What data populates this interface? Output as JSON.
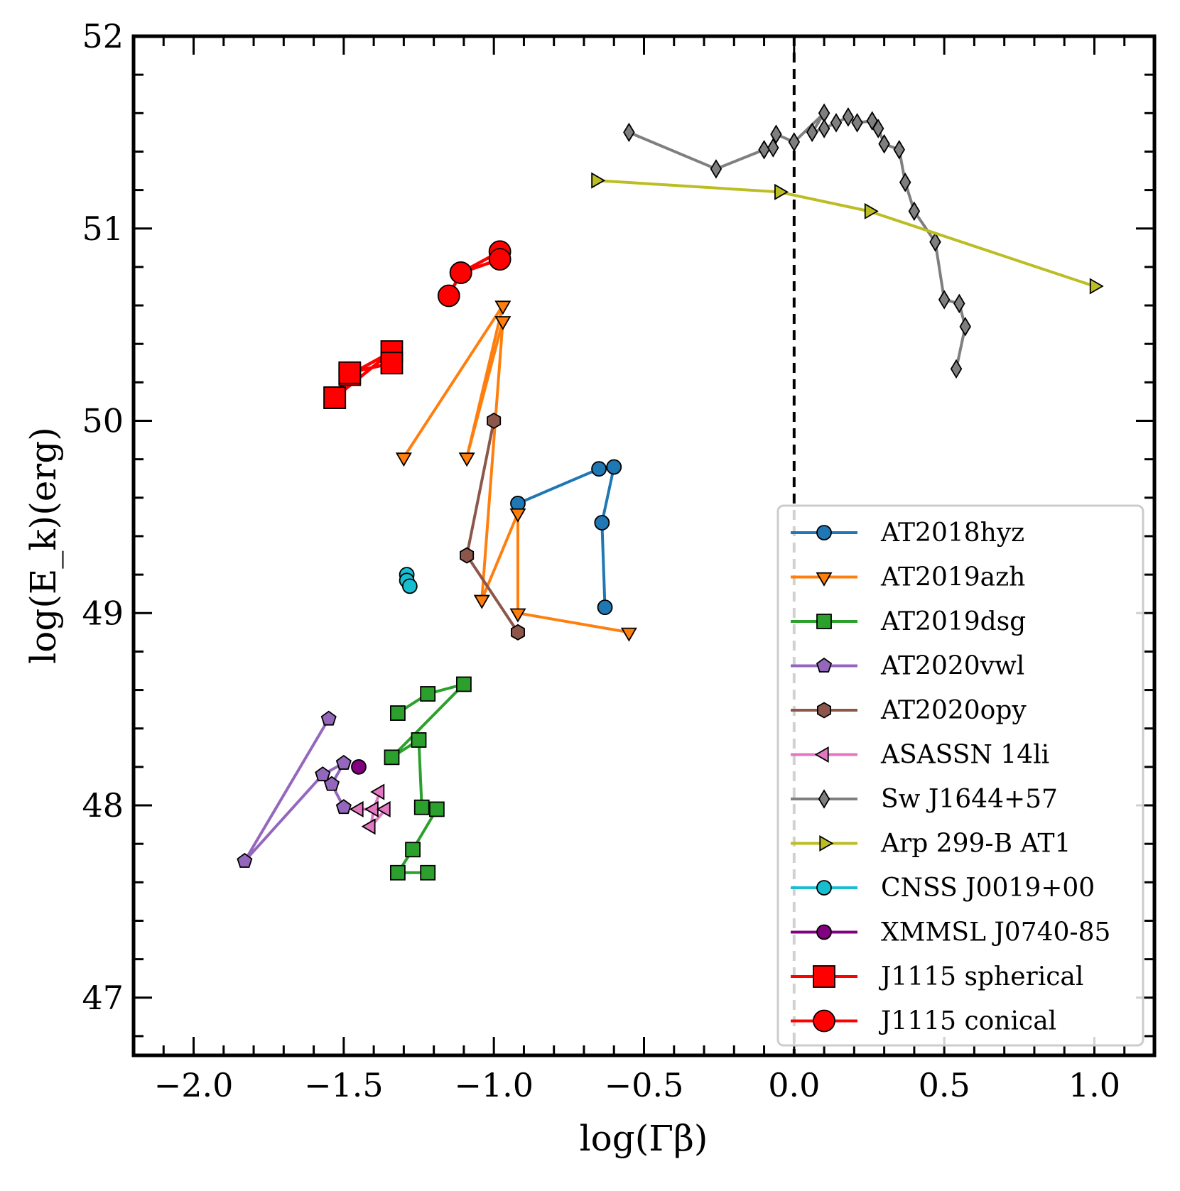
{
  "chart_data": {
    "type": "scatter",
    "title": "",
    "xlabel": "log(Γβ)",
    "ylabel": "log(E_k)(erg)",
    "xlim": [
      -2.2,
      1.2
    ],
    "ylim": [
      46.7,
      52.0
    ],
    "xticks": [
      -2.0,
      -1.5,
      -1.0,
      -0.5,
      0.0,
      0.5,
      1.0
    ],
    "xtick_labels": [
      "−2.0",
      "−1.5",
      "−1.0",
      "−0.5",
      "0.0",
      "0.5",
      "1.0"
    ],
    "yticks": [
      47,
      48,
      49,
      50,
      51,
      52
    ],
    "ytick_labels": [
      "47",
      "48",
      "49",
      "50",
      "51",
      "52"
    ],
    "vline": {
      "x": 0.0,
      "style": "dashed",
      "color": "#000000"
    },
    "legend_position": "lower-right",
    "series": [
      {
        "name": "AT2018hyz",
        "color": "#1f77b4",
        "marker": "circle",
        "x": [
          -0.92,
          -0.65,
          -0.6,
          -0.64,
          -0.63
        ],
        "y": [
          49.57,
          49.75,
          49.76,
          49.47,
          49.03
        ]
      },
      {
        "name": "AT2019azh",
        "color": "#ff7f0e",
        "marker": "triangle-down",
        "x": [
          -1.3,
          -0.97,
          -1.09,
          -0.97,
          -1.04,
          -0.92,
          -0.92,
          -0.55
        ],
        "y": [
          49.81,
          50.6,
          49.81,
          50.52,
          49.07,
          49.52,
          49.0,
          48.9
        ]
      },
      {
        "name": "AT2019dsg",
        "color": "#2ca02c",
        "marker": "square",
        "x": [
          -1.32,
          -1.22,
          -1.1,
          -1.34,
          -1.25,
          -1.24,
          -1.19,
          -1.27,
          -1.32,
          -1.22
        ],
        "y": [
          48.48,
          48.58,
          48.63,
          48.25,
          48.34,
          47.99,
          47.98,
          47.77,
          47.65,
          47.65
        ]
      },
      {
        "name": "AT2020vwl",
        "color": "#9467bd",
        "marker": "pentagon",
        "x": [
          -1.55,
          -1.83,
          -1.57,
          -1.5,
          -1.54,
          -1.5
        ],
        "y": [
          48.45,
          47.71,
          48.16,
          48.22,
          48.11,
          47.99
        ]
      },
      {
        "name": "AT2020opy",
        "color": "#8c564b",
        "marker": "hexagon",
        "x": [
          -1.0,
          -1.09,
          -0.92
        ],
        "y": [
          50.0,
          49.3,
          48.9
        ]
      },
      {
        "name": "ASASSN 14li",
        "color": "#e377c2",
        "marker": "triangle-left",
        "x": [
          -1.38,
          -1.4,
          -1.41,
          -1.36,
          -1.45
        ],
        "y": [
          48.07,
          47.98,
          47.89,
          47.98,
          47.98
        ]
      },
      {
        "name": "Sw J1644+57",
        "color": "#7f7f7f",
        "marker": "diamond",
        "x": [
          -0.55,
          -0.26,
          -0.1,
          -0.07,
          -0.06,
          0.0,
          0.1,
          0.06,
          0.1,
          0.14,
          0.18,
          0.21,
          0.26,
          0.28,
          0.3,
          0.35,
          0.37,
          0.4,
          0.47,
          0.5,
          0.55,
          0.57,
          0.54
        ],
        "y": [
          51.5,
          51.31,
          51.41,
          51.42,
          51.49,
          51.45,
          51.6,
          51.5,
          51.52,
          51.55,
          51.58,
          51.55,
          51.56,
          51.52,
          51.44,
          51.41,
          51.24,
          51.09,
          50.93,
          50.63,
          50.61,
          50.49,
          50.27
        ]
      },
      {
        "name": "Arp 299-B AT1",
        "color": "#bcbd22",
        "marker": "triangle-right",
        "x": [
          -0.66,
          -0.05,
          0.25,
          1.0
        ],
        "y": [
          51.25,
          51.19,
          51.09,
          50.7
        ]
      },
      {
        "name": "CNSS J0019+00",
        "color": "#17becf",
        "marker": "octagon",
        "x": [
          -1.29,
          -1.29,
          -1.28
        ],
        "y": [
          49.2,
          49.17,
          49.14
        ]
      },
      {
        "name": "XMMSL J0740-85",
        "color": "#800080",
        "marker": "circle",
        "x": [
          -1.45
        ],
        "y": [
          48.2
        ]
      },
      {
        "name": "J1115 spherical",
        "color": "#ff0000",
        "marker": "square",
        "x": [
          -1.53,
          -1.48,
          -1.34,
          -1.53,
          -1.48,
          -1.34
        ],
        "y": [
          50.12,
          50.24,
          50.36,
          50.12,
          50.25,
          50.3
        ]
      },
      {
        "name": "J1115 conical",
        "color": "#ff0000",
        "marker": "circle",
        "x": [
          -1.15,
          -1.11,
          -0.98,
          -1.11,
          -0.98
        ],
        "y": [
          50.65,
          50.77,
          50.88,
          50.77,
          50.84
        ]
      }
    ]
  }
}
